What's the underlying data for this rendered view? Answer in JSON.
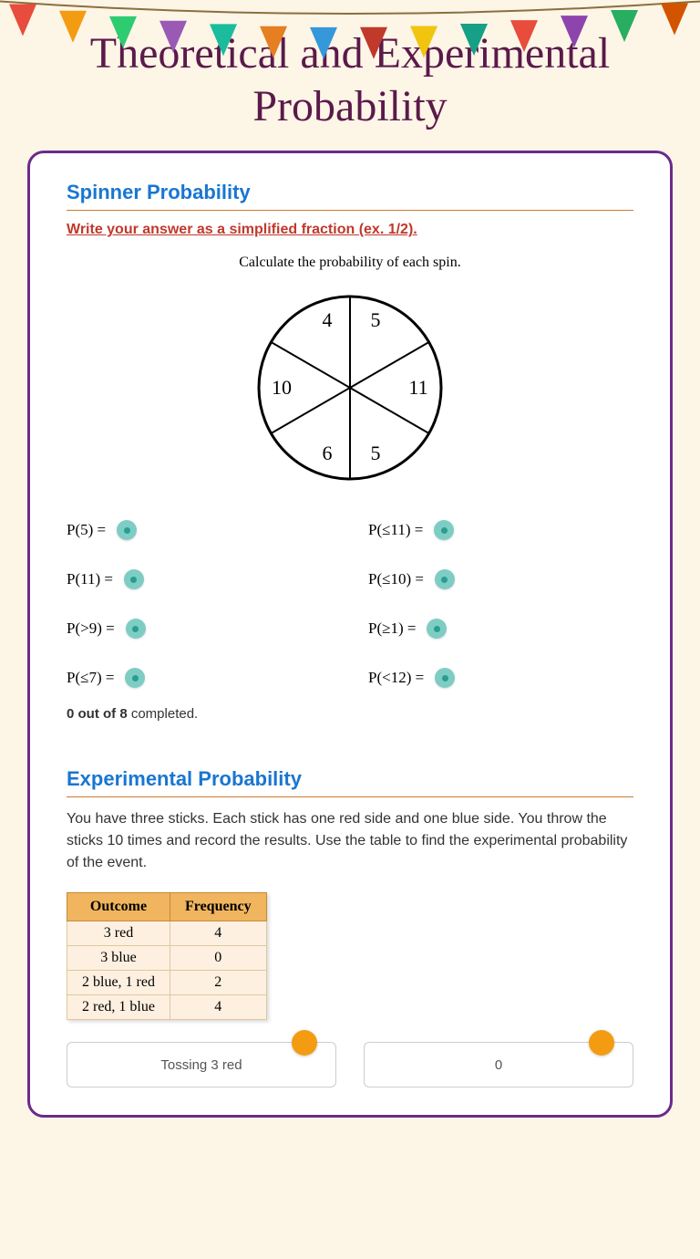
{
  "page_title": "Theoretical and Experimental Probability",
  "sections": {
    "spinner": {
      "title": "Spinner Probability",
      "instruction": "Write your answer as a simplified fraction (ex. 1/2).",
      "subtext": "Calculate the probability of each spin.",
      "wheel_segments": [
        "4",
        "5",
        "11",
        "5",
        "6",
        "10"
      ],
      "questions": [
        {
          "label": "P(5) ="
        },
        {
          "label": "P(≤11) ="
        },
        {
          "label": "P(11) ="
        },
        {
          "label": "P(≤10) ="
        },
        {
          "label": "P(>9) ="
        },
        {
          "label": "P(≥1) ="
        },
        {
          "label": "P(≤7) ="
        },
        {
          "label": "P(<12) ="
        }
      ],
      "progress_done": "0 out of 8",
      "progress_rest": " completed."
    },
    "experimental": {
      "title": "Experimental Probability",
      "body": "You have three sticks. Each stick has one red side and one blue side. You throw the sticks 10 times and record the results. Use the table to find the experimental probability of the event.",
      "table": {
        "headers": [
          "Outcome",
          "Frequency"
        ],
        "rows": [
          [
            "3 red",
            "4"
          ],
          [
            "3 blue",
            "0"
          ],
          [
            "2 blue, 1 red",
            "2"
          ],
          [
            "2 red, 1 blue",
            "4"
          ]
        ]
      },
      "prompt1": "Tossing 3 red",
      "prompt2": "0"
    }
  },
  "colors": {
    "title": "#5a1a4a",
    "section_title": "#1976d2",
    "instruction": "#c0392b",
    "card_border": "#6b2a8c",
    "dot_bg": "#7ecdc5",
    "table_header": "#f0b55e",
    "table_cell": "#fdf0e0",
    "orange": "#f39c12",
    "bunting": [
      "#e74c3c",
      "#f39c12",
      "#2ecc71",
      "#9b59b6",
      "#1abc9c",
      "#e67e22",
      "#3498db",
      "#c0392b",
      "#f1c40f",
      "#16a085",
      "#e74c3c",
      "#8e44ad",
      "#27ae60",
      "#d35400"
    ]
  }
}
